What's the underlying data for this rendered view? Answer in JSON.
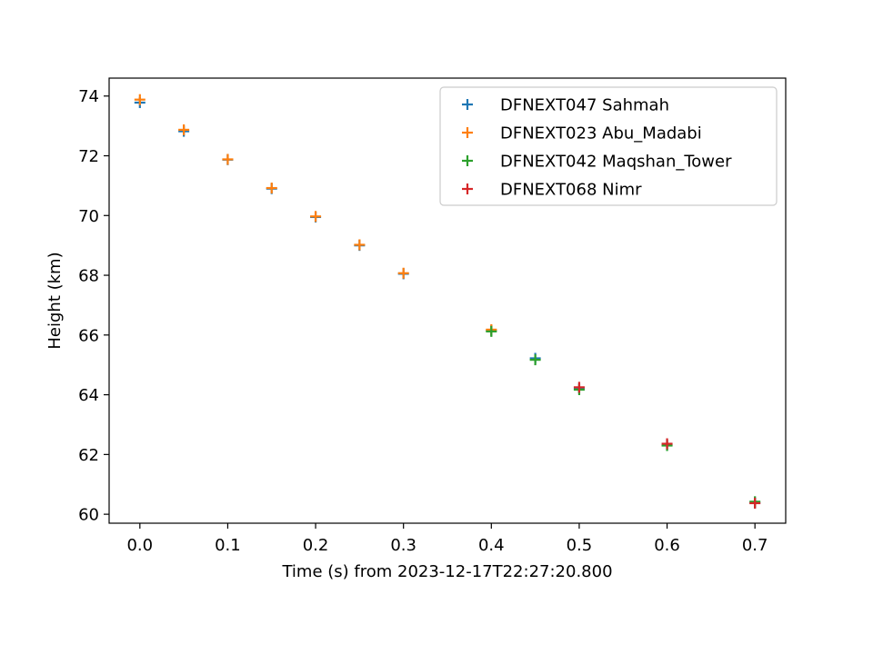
{
  "chart_data": {
    "type": "scatter",
    "title": "",
    "xlabel": "Time (s) from 2023-12-17T22:27:20.800",
    "ylabel": "Height (km)",
    "xlim": [
      -0.035,
      0.735
    ],
    "ylim": [
      59.7,
      74.6
    ],
    "x_ticks": [
      0.0,
      0.1,
      0.2,
      0.3,
      0.4,
      0.5,
      0.6,
      0.7
    ],
    "x_tick_labels": [
      "0.0",
      "0.1",
      "0.2",
      "0.3",
      "0.4",
      "0.5",
      "0.6",
      "0.7"
    ],
    "y_ticks": [
      60,
      62,
      64,
      66,
      68,
      70,
      72,
      74
    ],
    "y_tick_labels": [
      "60",
      "62",
      "64",
      "66",
      "68",
      "70",
      "72",
      "74"
    ],
    "marker": "plus",
    "grid": false,
    "legend_position": "top-right",
    "series": [
      {
        "name": "DFNEXT047 Sahmah",
        "color": "#1f77b4",
        "points": [
          [
            0.0,
            73.78
          ],
          [
            0.05,
            72.82
          ],
          [
            0.1,
            71.87
          ],
          [
            0.15,
            70.9
          ],
          [
            0.2,
            69.95
          ],
          [
            0.25,
            69.0
          ],
          [
            0.3,
            68.05
          ],
          [
            0.4,
            66.15
          ],
          [
            0.45,
            65.22
          ],
          [
            0.5,
            64.22
          ],
          [
            0.6,
            62.32
          ],
          [
            0.7,
            60.38
          ]
        ]
      },
      {
        "name": "DFNEXT023 Abu_Madabi",
        "color": "#ff7f0e",
        "points": [
          [
            0.0,
            73.88
          ],
          [
            0.05,
            72.87
          ],
          [
            0.1,
            71.88
          ],
          [
            0.15,
            70.92
          ],
          [
            0.2,
            69.97
          ],
          [
            0.25,
            69.02
          ],
          [
            0.3,
            68.07
          ],
          [
            0.4,
            66.18
          ]
        ]
      },
      {
        "name": "DFNEXT042 Maqshan_Tower",
        "color": "#2ca02c",
        "points": [
          [
            0.4,
            66.12
          ],
          [
            0.45,
            65.17
          ],
          [
            0.5,
            64.17
          ],
          [
            0.6,
            62.3
          ],
          [
            0.7,
            60.42
          ]
        ]
      },
      {
        "name": "DFNEXT068 Nimr",
        "color": "#d62728",
        "points": [
          [
            0.5,
            64.25
          ],
          [
            0.6,
            62.36
          ],
          [
            0.7,
            60.37
          ]
        ]
      }
    ]
  }
}
